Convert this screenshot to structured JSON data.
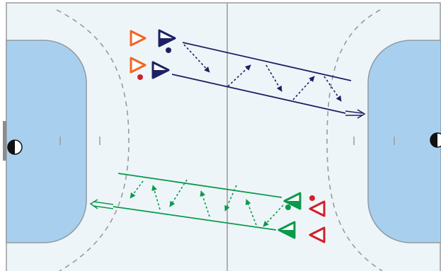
{
  "diagram": {
    "type": "handball-court-drill",
    "colors": {
      "court_background": "#eef5f9",
      "court_lines": "#9a9a9a",
      "goal_area": "#a8d0ee",
      "goal_area_border": "#8f9aa3",
      "goal_post": "#8c8c8c",
      "free_throw_line": "#9a9a9a",
      "attack_team_navy": "#1e2063",
      "defense_orange": "#f26522",
      "attack_team_green": "#0a9a4a",
      "defense_red": "#d0202a",
      "ball_navy": "#1e2063",
      "ball_red": "#d0202a",
      "ball_green": "#0a9a4a"
    },
    "players": {
      "navy_attackers": 2,
      "orange_defenders": 2,
      "green_attackers": 2,
      "red_defenders": 2
    },
    "goalkeepers": 2,
    "direction_navy_group": "right",
    "direction_green_group": "left",
    "passes_per_group": 6
  }
}
